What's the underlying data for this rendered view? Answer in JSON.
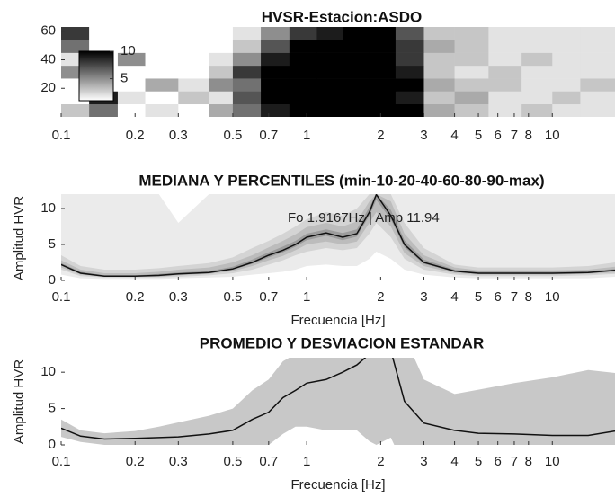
{
  "chart_data": [
    {
      "type": "heatmap",
      "title": "HVSR-Estacion:ASDO",
      "bins": [
        0.1,
        0.13,
        0.17,
        0.22,
        0.3,
        0.4,
        0.5,
        0.65,
        0.85,
        1.1,
        1.4,
        1.8,
        2.3,
        3,
        4,
        5.5,
        7.5,
        10,
        13,
        18
      ],
      "window_edges": [
        0,
        9,
        18,
        27,
        36,
        45,
        54,
        63
      ],
      "values": [
        [
          3,
          6,
          0,
          2,
          0,
          4,
          6,
          9,
          11,
          12,
          12,
          12,
          10,
          4,
          3,
          2,
          3,
          2,
          2
        ],
        [
          0,
          9,
          2,
          0,
          3,
          2,
          7,
          10,
          12,
          11,
          12,
          11,
          9,
          3,
          4,
          2,
          2,
          3,
          2
        ],
        [
          0,
          0,
          0,
          4,
          2,
          5,
          6,
          11,
          12,
          12,
          11,
          12,
          10,
          4,
          3,
          3,
          2,
          2,
          3
        ],
        [
          5,
          0,
          0,
          0,
          1,
          3,
          8,
          10,
          11,
          12,
          10,
          11,
          9,
          3,
          2,
          3,
          2,
          2,
          2
        ],
        [
          2,
          0,
          5,
          0,
          0,
          2,
          5,
          9,
          12,
          11,
          12,
          12,
          8,
          3,
          3,
          2,
          3,
          2,
          2
        ],
        [
          6,
          0,
          0,
          0,
          0,
          1,
          3,
          7,
          10,
          10,
          11,
          11,
          8,
          4,
          3,
          2,
          2,
          2,
          2
        ],
        [
          8,
          0,
          0,
          0,
          0,
          0,
          2,
          5,
          8,
          9,
          10,
          10,
          7,
          3,
          3,
          2,
          2,
          2,
          2
        ]
      ],
      "clim": [
        1,
        10
      ],
      "colorbar_ticks": [
        5,
        10
      ],
      "xlim": [
        0.1,
        18
      ],
      "xscale": "log",
      "xticks": [
        0.1,
        0.2,
        0.3,
        0.5,
        0.7,
        1,
        2,
        3,
        4,
        5,
        6,
        7,
        8,
        10
      ],
      "ylim": [
        0,
        63
      ],
      "yticks": [
        20,
        40,
        60
      ]
    },
    {
      "type": "band",
      "title": "MEDIANA Y PERCENTILES (min-10-20-40-60-80-90-max)",
      "x_label": "Frecuencia [Hz]",
      "y_label": "Amplitud HVR",
      "annotation": "Fo 1.9167Hz | Amp 11.94",
      "x": [
        0.1,
        0.12,
        0.15,
        0.2,
        0.25,
        0.3,
        0.4,
        0.5,
        0.6,
        0.7,
        0.8,
        0.9,
        1,
        1.2,
        1.4,
        1.6,
        1.8,
        1.92,
        2.2,
        2.5,
        3,
        4,
        5,
        7,
        10,
        14,
        18
      ],
      "bands": [
        {
          "color": "#ebebeb",
          "lower": [
            0.8,
            0.3,
            0.2,
            0.2,
            0.2,
            0.3,
            0.4,
            0.5,
            0.8,
            1.0,
            1.2,
            1.5,
            2.0,
            2.2,
            2.0,
            2.0,
            3.0,
            4.0,
            3.0,
            1.5,
            0.8,
            0.4,
            0.3,
            0.3,
            0.3,
            0.3,
            0.5
          ],
          "upper": [
            12,
            12,
            12,
            12,
            12,
            8,
            12,
            12,
            12,
            12,
            12,
            12,
            12,
            12,
            12,
            12,
            12,
            12,
            12,
            12,
            12,
            12,
            12,
            12,
            12,
            12,
            12
          ]
        },
        {
          "color": "#d4d4d4",
          "lower": [
            1.5,
            0.6,
            0.4,
            0.4,
            0.4,
            0.5,
            0.7,
            1.0,
            1.5,
            2.2,
            2.8,
            3.5,
            4.0,
            4.5,
            4.2,
            4.5,
            6.5,
            8.0,
            6.0,
            3.0,
            1.5,
            0.8,
            0.6,
            0.6,
            0.6,
            0.7,
            0.9
          ],
          "upper": [
            3.5,
            2,
            1.5,
            1.5,
            1.7,
            2,
            2.4,
            3.2,
            4.5,
            5.5,
            6.5,
            7.5,
            8.5,
            9.5,
            9,
            10,
            12,
            12,
            12,
            8,
            4.5,
            2.2,
            1.8,
            1.8,
            1.8,
            2,
            2.5
          ]
        },
        {
          "color": "#bcbcbc",
          "lower": [
            1.8,
            0.8,
            0.5,
            0.5,
            0.5,
            0.7,
            0.9,
            1.3,
            2,
            2.8,
            3.4,
            4.2,
            5,
            5.4,
            5,
            5.4,
            8,
            9.5,
            7.5,
            3.8,
            2,
            1,
            0.8,
            0.8,
            0.8,
            0.9,
            1.1
          ],
          "upper": [
            2.8,
            1.5,
            1,
            1,
            1.2,
            1.5,
            1.8,
            2.5,
            3.5,
            4.6,
            5.5,
            6.4,
            7.4,
            8,
            7.5,
            8.2,
            11,
            12,
            11,
            6.5,
            3.5,
            1.8,
            1.4,
            1.4,
            1.4,
            1.5,
            1.9
          ]
        },
        {
          "color": "#9c9c9c",
          "lower": [
            2.1,
            0.9,
            0.55,
            0.55,
            0.6,
            0.8,
            1,
            1.5,
            2.3,
            3.2,
            3.9,
            4.7,
            5.6,
            6.2,
            5.6,
            6.1,
            9,
            11.2,
            8.5,
            4.6,
            2.3,
            1.2,
            0.9,
            0.9,
            0.9,
            1,
            1.3
          ],
          "upper": [
            2.4,
            1.2,
            0.7,
            0.7,
            0.9,
            1.1,
            1.3,
            1.9,
            2.9,
            3.9,
            4.7,
            5.5,
            6.5,
            7.1,
            6.6,
            7.1,
            10.2,
            12,
            9.8,
            5.6,
            2.9,
            1.5,
            1.2,
            1.2,
            1.2,
            1.3,
            1.6
          ]
        }
      ],
      "median": [
        2.2,
        1.0,
        0.6,
        0.6,
        0.7,
        0.9,
        1.1,
        1.6,
        2.5,
        3.5,
        4.2,
        5.0,
        6.0,
        6.6,
        6.0,
        6.5,
        9.5,
        11.94,
        9,
        5,
        2.5,
        1.3,
        1.0,
        1.0,
        1.0,
        1.1,
        1.4
      ],
      "line_color": "#111111",
      "xlim": [
        0.1,
        18
      ],
      "xscale": "log",
      "xticks": [
        0.1,
        0.2,
        0.3,
        0.5,
        0.7,
        1,
        2,
        3,
        4,
        5,
        6,
        7,
        8,
        10
      ],
      "ylim": [
        0,
        12
      ],
      "yticks": [
        0,
        5,
        10
      ]
    },
    {
      "type": "errorband",
      "title": "PROMEDIO Y DESVIACION ESTANDAR",
      "x_label": "Frecuencia [Hz]",
      "y_label": "Amplitud HVR",
      "x": [
        0.1,
        0.12,
        0.15,
        0.2,
        0.25,
        0.3,
        0.4,
        0.5,
        0.6,
        0.7,
        0.8,
        0.9,
        1,
        1.2,
        1.4,
        1.6,
        1.8,
        1.92,
        2.2,
        2.5,
        3,
        4,
        5,
        7,
        10,
        14,
        18
      ],
      "mean": [
        2.3,
        1.2,
        0.8,
        0.9,
        1.0,
        1.1,
        1.5,
        2.0,
        3.5,
        4.5,
        6.5,
        7.5,
        8.5,
        9,
        10,
        11,
        12.5,
        14,
        13,
        6,
        3,
        2,
        1.6,
        1.5,
        1.3,
        1.3,
        1.9
      ],
      "std": [
        1.2,
        0.8,
        0.8,
        1,
        1.5,
        2,
        2.5,
        3,
        4,
        4.5,
        5,
        5,
        6,
        7,
        8,
        9,
        12,
        14,
        12,
        9,
        6,
        5,
        6,
        7,
        8,
        9,
        8
      ],
      "band_color": "#c8c8c8",
      "line_color": "#111111",
      "xlim": [
        0.1,
        18
      ],
      "xscale": "log",
      "xticks": [
        0.1,
        0.2,
        0.3,
        0.5,
        0.7,
        1,
        2,
        3,
        4,
        5,
        6,
        7,
        8,
        10
      ],
      "ylim": [
        0,
        12
      ],
      "yticks": [
        0,
        5,
        10
      ]
    }
  ]
}
